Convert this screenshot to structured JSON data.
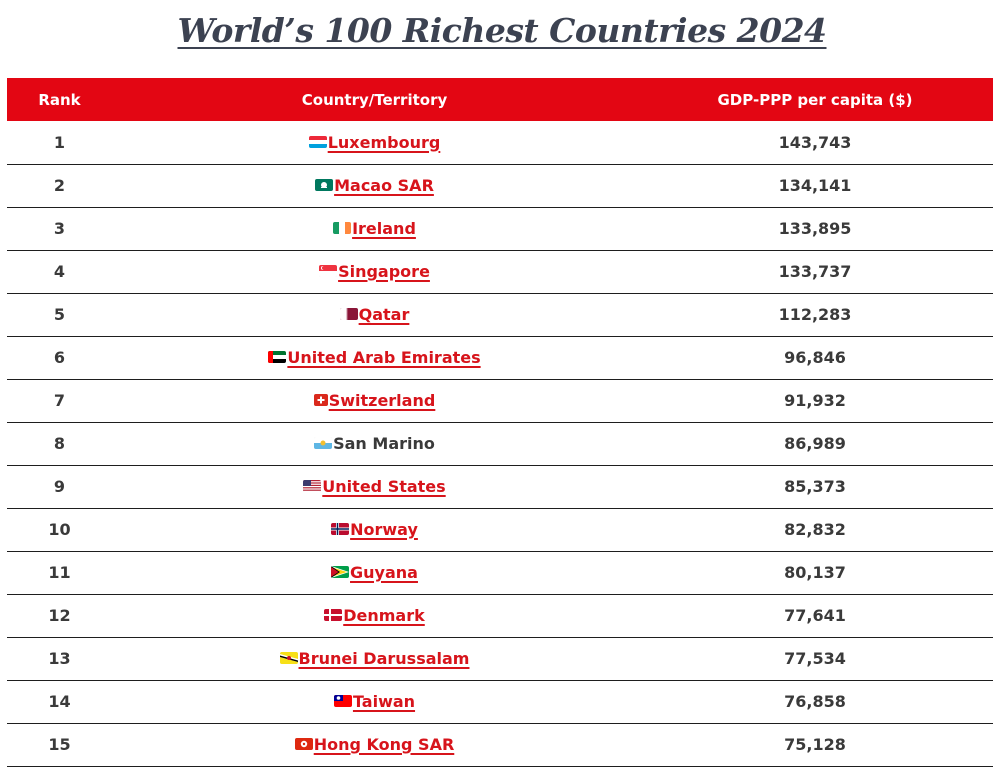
{
  "page": {
    "title": "World’s 100 Richest Countries 2024"
  },
  "table": {
    "headers": {
      "rank": "Rank",
      "country": "Country/Territory",
      "gdp": "GDP-PPP per capita ($)"
    },
    "rows": [
      {
        "rank": "1",
        "country": "Luxembourg",
        "gdp": "143,743",
        "flag": "luxembourg-flag-icon",
        "linked": true
      },
      {
        "rank": "2",
        "country": "Macao SAR",
        "gdp": "134,141",
        "flag": "macao-flag-icon",
        "linked": true
      },
      {
        "rank": "3",
        "country": "Ireland",
        "gdp": "133,895",
        "flag": "ireland-flag-icon",
        "linked": true
      },
      {
        "rank": "4",
        "country": "Singapore",
        "gdp": "133,737",
        "flag": "singapore-flag-icon",
        "linked": true
      },
      {
        "rank": "5",
        "country": "Qatar",
        "gdp": "112,283",
        "flag": "qatar-flag-icon",
        "linked": true
      },
      {
        "rank": "6",
        "country": "United Arab Emirates",
        "gdp": "96,846",
        "flag": "uae-flag-icon",
        "linked": true
      },
      {
        "rank": "7",
        "country": "Switzerland",
        "gdp": "91,932",
        "flag": "switzerland-flag-icon",
        "linked": true
      },
      {
        "rank": "8",
        "country": "San Marino",
        "gdp": "86,989",
        "flag": "san-marino-flag-icon",
        "linked": false
      },
      {
        "rank": "9",
        "country": "United States",
        "gdp": "85,373",
        "flag": "united-states-flag-icon",
        "linked": true
      },
      {
        "rank": "10",
        "country": "Norway",
        "gdp": "82,832",
        "flag": "norway-flag-icon",
        "linked": true
      },
      {
        "rank": "11",
        "country": "Guyana",
        "gdp": "80,137",
        "flag": "guyana-flag-icon",
        "linked": true
      },
      {
        "rank": "12",
        "country": "Denmark",
        "gdp": "77,641",
        "flag": "denmark-flag-icon",
        "linked": true
      },
      {
        "rank": "13",
        "country": "Brunei Darussalam",
        "gdp": "77,534",
        "flag": "brunei-flag-icon",
        "linked": true
      },
      {
        "rank": "14",
        "country": "Taiwan",
        "gdp": "76,858",
        "flag": "taiwan-flag-icon",
        "linked": true
      },
      {
        "rank": "15",
        "country": "Hong Kong SAR",
        "gdp": "75,128",
        "flag": "hong-kong-flag-icon",
        "linked": true
      }
    ]
  },
  "colors": {
    "header_bg": "#e30613",
    "link": "#d7141b",
    "title": "#3c4251"
  }
}
